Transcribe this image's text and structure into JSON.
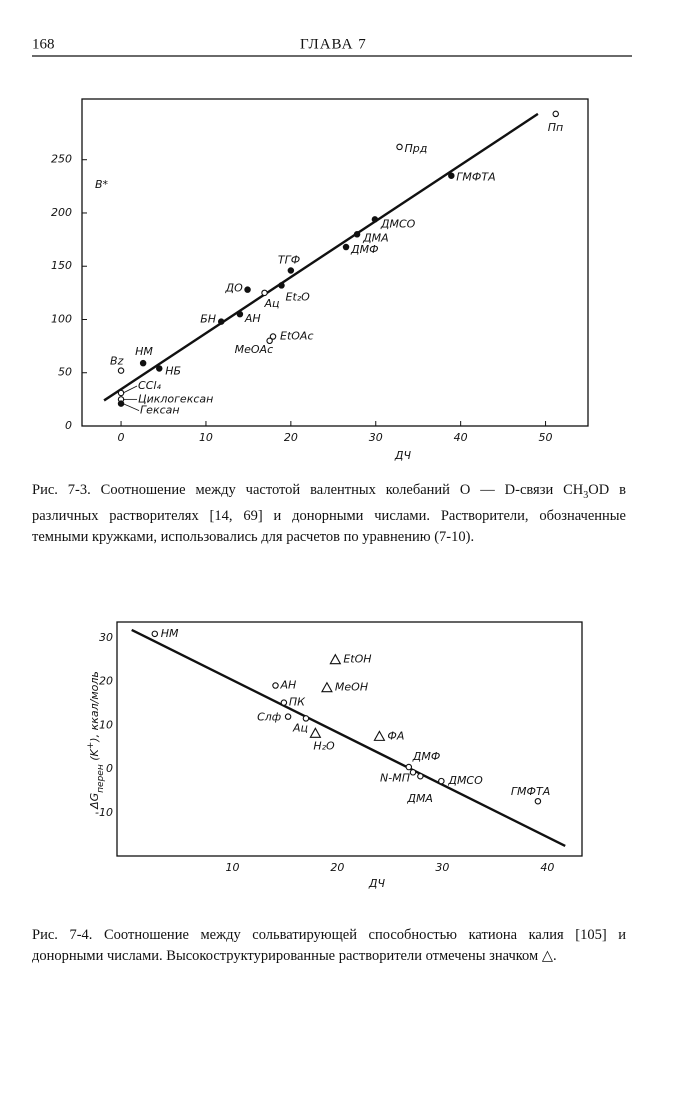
{
  "header": {
    "page_number": "168",
    "chapter": "ГЛАВА 7"
  },
  "chart_data": [
    {
      "type": "scatter",
      "x_label": "ДЧ",
      "y_label": "B*",
      "xlim": [
        -4.6,
        55
      ],
      "ylim": [
        0,
        307
      ],
      "xticks": [
        0,
        10,
        20,
        30,
        40,
        50
      ],
      "yticks": [
        0,
        50,
        100,
        150,
        200,
        250
      ],
      "grid": false,
      "labels": [
        "Пп",
        "Прд",
        "ГМФТА",
        "ДМСО",
        "ДМА",
        "ДМФ",
        "ТГФ",
        "Et₂O",
        "Ац",
        "ДО",
        "АН",
        "БН",
        "EtOAc",
        "MeOAc",
        "НМ",
        "НБ",
        "Bz",
        "CCl₄",
        "Циклогексан",
        "Гексан"
      ],
      "x": [
        51.2,
        32.8,
        38.9,
        29.9,
        27.8,
        26.5,
        20.0,
        18.9,
        16.9,
        14.9,
        14.0,
        11.8,
        17.9,
        17.5,
        2.6,
        4.5,
        0.0,
        0.0,
        0.0,
        0.0
      ],
      "y": [
        293,
        262,
        235,
        194,
        180,
        168,
        146,
        132,
        125,
        128,
        105,
        98,
        84,
        80,
        59,
        54,
        52,
        31,
        25,
        21
      ],
      "markers": [
        "open",
        "open",
        "filled",
        "filled",
        "filled",
        "filled",
        "filled",
        "filled",
        "open",
        "filled",
        "filled",
        "filled",
        "open",
        "open",
        "filled",
        "filled",
        "open",
        "open",
        "open",
        "filled"
      ],
      "fit_line": {
        "x": [
          -2.0,
          49.1
        ],
        "y": [
          24,
          293
        ]
      }
    },
    {
      "type": "scatter",
      "x_label": "ДЧ",
      "y_label": [
        "ΔG",
        "перен",
        " (K",
        "+",
        "), ккал/моль"
      ],
      "xlim": [
        -1,
        43.3
      ],
      "ylim": [
        -19.8,
        33.6
      ],
      "xticks": [
        10,
        20,
        30,
        40
      ],
      "yticks": [
        30,
        20,
        10,
        0,
        -10
      ],
      "grid": false,
      "labels": [
        "НМ",
        "АН",
        "ПК",
        "Слф",
        "Ац",
        "H₂O",
        "EtOH",
        "MeOH",
        "ФА",
        "ДМФ",
        "N-МП",
        "ДМА",
        "ДМСО",
        "ГМФТА"
      ],
      "x": [
        2.6,
        14.1,
        14.9,
        15.3,
        17.0,
        17.9,
        19.8,
        19.0,
        24.0,
        26.8,
        27.2,
        27.9,
        29.9,
        39.1
      ],
      "y": [
        30.9,
        19.1,
        15.2,
        12.0,
        11.6,
        8.2,
        25.0,
        18.6,
        7.5,
        0.5,
        -0.7,
        -1.6,
        -2.7,
        -7.3
      ],
      "markers": [
        "circle",
        "circle",
        "circle",
        "circle",
        "circle",
        "triangle",
        "triangle",
        "triangle",
        "triangle",
        "circle",
        "circle",
        "circle",
        "circle",
        "circle"
      ],
      "fit_line": {
        "x": [
          0.4,
          41.7
        ],
        "y": [
          31.8,
          -17.5
        ]
      }
    }
  ],
  "captions": [
    [
      "Рис. 7-3. Соотношение между частотой валентных колебаний O — D-связи CH",
      "3",
      "OD в различных растворителях [14, 69] и донорными числами. Растворители, обозначенные темными кружками, использовались для расчетов по уравнению (7-10)."
    ],
    [
      "Рис. 7-4. Соотношение между сольватирующей способностью катиона калия [105] и донорными числами. Высокоструктурированные растворители отмечены значком △."
    ]
  ]
}
